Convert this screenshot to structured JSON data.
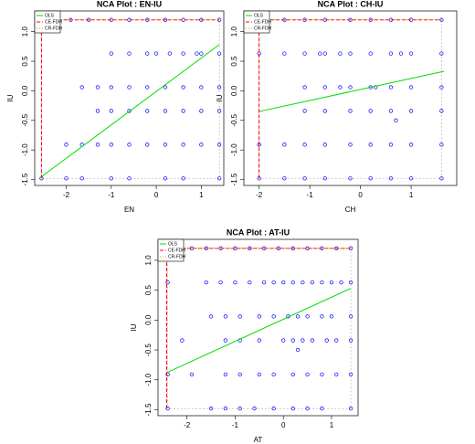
{
  "chart_data": [
    {
      "type": "scatter",
      "title": "NCA Plot : EN-IU",
      "x_label": "EN",
      "y_label": "IU",
      "xlim": [
        -2.7,
        1.5
      ],
      "ylim": [
        -1.6,
        1.35
      ],
      "xticks": [
        -2,
        -1,
        0,
        1
      ],
      "yticks": [
        -1.5,
        {
          "value": -1,
          "label": "-1.0"
        },
        -0.5,
        {
          "value": 0,
          "label": "0.0"
        },
        0.5,
        {
          "value": 1,
          "label": "1.0"
        }
      ],
      "legend": "topleft",
      "points": {
        "color": "#0000ff",
        "x": [
          -2.55,
          -1.9,
          -1.5,
          -1.0,
          -0.6,
          -0.2,
          0.2,
          0.6,
          1.0,
          1.4,
          -1.0,
          -0.6,
          -0.2,
          0.0,
          0.3,
          0.6,
          0.9,
          1.0,
          1.4,
          -1.65,
          -1.3,
          -1.0,
          -0.6,
          -0.2,
          0.2,
          0.6,
          1.0,
          1.4,
          -1.3,
          -1.0,
          -0.6,
          -0.2,
          0.2,
          0.6,
          1.0,
          1.4,
          -2.0,
          -1.65,
          -1.3,
          -1.0,
          -0.6,
          -0.2,
          0.2,
          0.6,
          1.0,
          1.4,
          -2.55,
          -2.0,
          -1.65,
          -1.0,
          -0.6,
          0.2,
          0.6,
          1.4
        ],
        "y": [
          1.2,
          1.2,
          1.2,
          1.2,
          1.2,
          1.2,
          1.2,
          1.2,
          1.2,
          1.2,
          0.63,
          0.63,
          0.63,
          0.63,
          0.63,
          0.63,
          0.63,
          0.63,
          0.63,
          0.06,
          0.06,
          0.06,
          0.06,
          0.06,
          0.06,
          0.06,
          0.06,
          0.06,
          -0.34,
          -0.34,
          -0.34,
          -0.34,
          -0.34,
          -0.34,
          -0.34,
          -0.34,
          -0.91,
          -0.91,
          -0.91,
          -0.91,
          -0.91,
          -0.91,
          -0.91,
          -0.91,
          -0.91,
          -0.91,
          -1.48,
          -1.48,
          -1.48,
          -1.48,
          -1.48,
          -1.48,
          -1.48,
          -1.48
        ]
      },
      "lines": [
        {
          "name": "OLS",
          "color": "#00dd00",
          "dash": "solid",
          "x": [
            -2.6,
            1.4
          ],
          "y": [
            -1.48,
            0.78
          ]
        },
        {
          "name": "CE-FDH",
          "color": "#ff0000",
          "dash": "dashed",
          "x": [
            -2.55,
            -2.55,
            1.4
          ],
          "y": [
            -1.48,
            1.2,
            1.2
          ]
        },
        {
          "name": "CR-FDH",
          "color": "#ff8c00",
          "dash": "dotted",
          "x": [
            -2.55,
            1.4
          ],
          "y": [
            1.2,
            1.2
          ]
        }
      ]
    },
    {
      "type": "scatter",
      "title": "NCA Plot : CH-IU",
      "x_label": "CH",
      "y_label": "IU",
      "xlim": [
        -2.3,
        1.9
      ],
      "ylim": [
        -1.6,
        1.35
      ],
      "xticks": [
        -2,
        -1,
        0,
        1
      ],
      "yticks": [
        -1.5,
        {
          "value": -1,
          "label": "-1.0"
        },
        -0.5,
        {
          "value": 0,
          "label": "0.0"
        },
        0.5,
        {
          "value": 1,
          "label": "1.0"
        }
      ],
      "legend": "topleft",
      "points": {
        "color": "#0000ff",
        "x": [
          -2.0,
          -1.5,
          -1.1,
          -0.7,
          -0.2,
          0.2,
          0.6,
          1.0,
          1.6,
          -2.0,
          -1.5,
          -1.1,
          -0.8,
          -0.7,
          -0.4,
          -0.2,
          0.2,
          0.6,
          0.8,
          1.0,
          1.6,
          -1.1,
          -0.7,
          -0.4,
          -0.2,
          0.2,
          0.3,
          0.6,
          1.0,
          1.6,
          -1.1,
          -0.7,
          -0.2,
          0.2,
          0.6,
          1.0,
          1.6,
          0.7,
          -2.0,
          -1.5,
          -1.1,
          -0.7,
          -0.2,
          0.2,
          0.6,
          1.0,
          1.6,
          -2.0,
          -1.5,
          -1.1,
          -0.7,
          -0.2,
          0.2,
          0.6,
          1.0,
          1.6
        ],
        "y": [
          1.2,
          1.2,
          1.2,
          1.2,
          1.2,
          1.2,
          1.2,
          1.2,
          1.2,
          0.63,
          0.63,
          0.63,
          0.63,
          0.63,
          0.63,
          0.63,
          0.63,
          0.63,
          0.63,
          0.63,
          0.63,
          0.06,
          0.06,
          0.06,
          0.06,
          0.06,
          0.06,
          0.06,
          0.06,
          0.06,
          -0.34,
          -0.34,
          -0.34,
          -0.34,
          -0.34,
          -0.34,
          -0.34,
          -0.5,
          -0.91,
          -0.91,
          -0.91,
          -0.91,
          -0.91,
          -0.91,
          -0.91,
          -0.91,
          -0.91,
          -1.48,
          -1.48,
          -1.48,
          -1.48,
          -1.48,
          -1.48,
          -1.48,
          -1.48,
          -1.48
        ]
      },
      "lines": [
        {
          "name": "OLS",
          "color": "#00dd00",
          "dash": "solid",
          "x": [
            -2.0,
            1.65
          ],
          "y": [
            -0.35,
            0.33
          ]
        },
        {
          "name": "CE-FDH",
          "color": "#ff0000",
          "dash": "dashed",
          "x": [
            -2.0,
            -2.0,
            1.6
          ],
          "y": [
            -1.48,
            1.2,
            1.2
          ]
        },
        {
          "name": "CR-FDH",
          "color": "#ff8c00",
          "dash": "dotted",
          "x": [
            -2.0,
            1.6
          ],
          "y": [
            1.2,
            1.2
          ]
        }
      ]
    },
    {
      "type": "scatter",
      "title": "NCA Plot : AT-IU",
      "x_label": "AT",
      "y_label": "IU",
      "xlim": [
        -2.6,
        1.55
      ],
      "ylim": [
        -1.6,
        1.35
      ],
      "xticks": [
        -2,
        -1,
        0,
        1
      ],
      "yticks": [
        -1.5,
        {
          "value": -1,
          "label": "-1.0"
        },
        -0.5,
        {
          "value": 0,
          "label": "0.0"
        },
        0.5,
        {
          "value": 1,
          "label": "1.0"
        }
      ],
      "legend": "topleft",
      "points": {
        "color": "#0000ff",
        "x": [
          -2.4,
          -2.2,
          -2.1,
          -1.9,
          -1.6,
          -1.3,
          -1.0,
          -0.7,
          -0.4,
          -0.1,
          0.2,
          0.5,
          0.8,
          1.1,
          1.4,
          -2.4,
          -1.6,
          -1.3,
          -1.0,
          -0.7,
          -0.4,
          -0.2,
          0.0,
          0.2,
          0.4,
          0.6,
          0.8,
          1.0,
          1.2,
          1.4,
          -1.5,
          -1.2,
          -0.9,
          -0.5,
          -0.2,
          0.1,
          0.3,
          0.5,
          0.8,
          1.0,
          1.4,
          -2.1,
          -1.2,
          -0.9,
          -0.5,
          0.0,
          0.2,
          0.4,
          0.6,
          0.9,
          1.1,
          1.4,
          0.3,
          -2.4,
          -1.9,
          -1.2,
          -0.9,
          -0.5,
          -0.2,
          0.2,
          0.5,
          0.8,
          1.1,
          1.4,
          -2.4,
          -1.5,
          -1.2,
          -0.9,
          -0.6,
          -0.2,
          0.2,
          0.5,
          0.8,
          1.4
        ],
        "y": [
          1.2,
          1.2,
          1.2,
          1.2,
          1.2,
          1.2,
          1.2,
          1.2,
          1.2,
          1.2,
          1.2,
          1.2,
          1.2,
          1.2,
          1.2,
          0.63,
          0.63,
          0.63,
          0.63,
          0.63,
          0.63,
          0.63,
          0.63,
          0.63,
          0.63,
          0.63,
          0.63,
          0.63,
          0.63,
          0.63,
          0.06,
          0.06,
          0.06,
          0.06,
          0.06,
          0.06,
          0.06,
          0.06,
          0.06,
          0.06,
          0.06,
          -0.34,
          -0.34,
          -0.34,
          -0.34,
          -0.34,
          -0.34,
          -0.34,
          -0.34,
          -0.34,
          -0.34,
          -0.34,
          -0.5,
          -0.91,
          -0.91,
          -0.91,
          -0.91,
          -0.91,
          -0.91,
          -0.91,
          -0.91,
          -0.91,
          -0.91,
          -0.91,
          -1.48,
          -1.48,
          -1.48,
          -1.48,
          -1.48,
          -1.48,
          -1.48,
          -1.48,
          -1.48,
          -1.48
        ]
      },
      "lines": [
        {
          "name": "OLS",
          "color": "#00dd00",
          "dash": "solid",
          "x": [
            -2.42,
            1.4
          ],
          "y": [
            -0.88,
            0.53
          ]
        },
        {
          "name": "CE-FDH",
          "color": "#ff0000",
          "dash": "dashed",
          "x": [
            -2.42,
            -2.42,
            1.4
          ],
          "y": [
            -1.48,
            1.2,
            1.2
          ]
        },
        {
          "name": "CR-FDH",
          "color": "#ff8c00",
          "dash": "dotted",
          "x": [
            -2.42,
            1.4
          ],
          "y": [
            1.2,
            1.2
          ]
        }
      ]
    }
  ]
}
